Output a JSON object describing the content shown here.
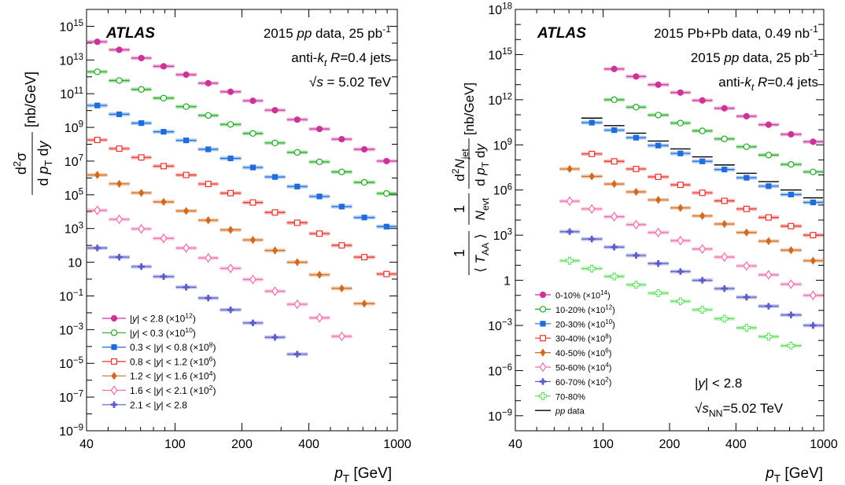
{
  "chart_data": [
    {
      "type": "scatter",
      "panel": "left",
      "xscale": "log",
      "yscale": "log",
      "xlim": [
        40,
        1000
      ],
      "ylim": [
        1e-09,
        1e+16
      ],
      "x_ticks": [
        {
          "v": 40,
          "t": "40"
        },
        {
          "v": 100,
          "t": "100"
        },
        {
          "v": 200,
          "t": "200"
        },
        {
          "v": 400,
          "t": "400"
        },
        {
          "v": 1000,
          "t": "1000"
        }
      ],
      "y_ticks": [
        {
          "v": 1e-09,
          "b": "10",
          "e": "−9"
        },
        {
          "v": 1e-07,
          "b": "10",
          "e": "−7"
        },
        {
          "v": 1e-05,
          "b": "10",
          "e": "−5"
        },
        {
          "v": 0.001,
          "b": "10",
          "e": "−3"
        },
        {
          "v": 0.1,
          "b": "10",
          "e": "−1"
        },
        {
          "v": 10,
          "b": "10",
          "e": ""
        },
        {
          "v": 1000.0,
          "b": "10",
          "e": "3"
        },
        {
          "v": 100000.0,
          "b": "10",
          "e": "5"
        },
        {
          "v": 10000000.0,
          "b": "10",
          "e": "7"
        },
        {
          "v": 1000000000.0,
          "b": "10",
          "e": "9"
        },
        {
          "v": 100000000000.0,
          "b": "10",
          "e": "11"
        },
        {
          "v": 10000000000000.0,
          "b": "10",
          "e": "13"
        },
        {
          "v": 1000000000000000.0,
          "b": "10",
          "e": "15"
        }
      ],
      "xlabel": "p_T [GeV]",
      "ylabel": "d²σ / d p_T dy [nb/GeV]",
      "annotations": [
        "ATLAS",
        "2015 pp data, 25 pb⁻¹",
        "anti-k_t R=0.4 jets",
        "√s = 5.02 TeV"
      ],
      "legend_position": "bottom-left",
      "bin_edges": [
        40,
        50,
        63,
        79,
        100,
        126,
        158,
        200,
        251,
        316,
        398,
        501,
        631,
        800,
        1000
      ],
      "series": [
        {
          "name": "|y| < 2.8 (×10¹²)",
          "color": "#cc3399",
          "marker": "circle-filled",
          "values": [
            120000000000000.0,
            40000000000000.0,
            13000000000000.0,
            4200000000000.0,
            1350000000000.0,
            420000000000.0,
            130000000000.0,
            38000000000.0,
            10500000000.0,
            2900000000.0,
            800000000.0,
            200000000.0,
            50000000.0,
            10000000.0
          ]
        },
        {
          "name": "|y| < 0.3 (×10¹⁰)",
          "color": "#22aa22",
          "marker": "circle-open",
          "values": [
            2000000000000.0,
            600000000000.0,
            180000000000.0,
            55000000000.0,
            17000000000.0,
            5100000000.0,
            1500000000.0,
            440000000.0,
            120000000.0,
            33000000.0,
            9000000.0,
            2300000.0,
            550000.0,
            120000.0
          ]
        },
        {
          "name": "0.3 < |y| < 0.8 (×10⁸)",
          "color": "#1f6ddb",
          "marker": "square-filled",
          "values": [
            20000000000.0,
            6000000000.0,
            1800000000.0,
            550000000.0,
            170000000.0,
            50000000.0,
            14500000.0,
            4200000.0,
            1150000.0,
            310000.0,
            80000.0,
            20000.0,
            4500.0,
            1300.0
          ]
        },
        {
          "name": "0.8 < |y| < 1.2 (×10⁶)",
          "color": "#e8322c",
          "marker": "square-open",
          "values": [
            180000000.0,
            55000000.0,
            16500000.0,
            5000000.0,
            1500000.0,
            440000.0,
            125000.0,
            35000.0,
            9000.0,
            2200.0,
            500.0,
            100.0,
            20,
            2.0
          ]
        },
        {
          "name": "1.2 < |y| < 1.6 (×10⁴)",
          "color": "#d2691e",
          "marker": "diamond-filled",
          "values": [
            1500000.0,
            450000.0,
            130000.0,
            38000.0,
            11000.0,
            3100.0,
            830.0,
            210.0,
            50,
            10,
            1.8,
            0.28,
            0.035
          ]
        },
        {
          "name": "1.6 < |y| < 2.1 (×10²)",
          "color": "#f06ca8",
          "marker": "diamond-open",
          "values": [
            12000.0,
            3500.0,
            950.0,
            260.0,
            70,
            18,
            4.3,
            0.95,
            0.19,
            0.032,
            0.005,
            0.0004
          ]
        },
        {
          "name": "2.1 < |y| < 2.8",
          "color": "#5c5cc8",
          "marker": "cross",
          "values": [
            70,
            20,
            5.5,
            1.4,
            0.33,
            0.075,
            0.015,
            0.0025,
            0.00035,
            3.5e-05
          ]
        }
      ]
    },
    {
      "type": "scatter",
      "panel": "right",
      "xscale": "log",
      "yscale": "log",
      "xlim": [
        40,
        1000
      ],
      "ylim": [
        1e-10,
        1e+18
      ],
      "x_ticks": [
        {
          "v": 40,
          "t": "40"
        },
        {
          "v": 100,
          "t": "100"
        },
        {
          "v": 200,
          "t": "200"
        },
        {
          "v": 400,
          "t": "400"
        },
        {
          "v": 1000,
          "t": "1000"
        }
      ],
      "y_ticks": [
        {
          "v": 1e-09,
          "b": "10",
          "e": "−9"
        },
        {
          "v": 1e-06,
          "b": "10",
          "e": "−6"
        },
        {
          "v": 0.001,
          "b": "10",
          "e": "−3"
        },
        {
          "v": 1,
          "b": "1",
          "e": ""
        },
        {
          "v": 1000.0,
          "b": "10",
          "e": "3"
        },
        {
          "v": 1000000.0,
          "b": "10",
          "e": "6"
        },
        {
          "v": 1000000000.0,
          "b": "10",
          "e": "9"
        },
        {
          "v": 1000000000000.0,
          "b": "10",
          "e": "12"
        },
        {
          "v": 1000000000000000.0,
          "b": "10",
          "e": "15"
        },
        {
          "v": 1e+18,
          "b": "10",
          "e": "18"
        }
      ],
      "xlabel": "p_T [GeV]",
      "ylabel": "1/⟨T_AA⟩ · 1/N_evt · d²N_jet / d p_T dy [nb/GeV]",
      "annotations": [
        "ATLAS",
        "2015 Pb+Pb data, 0.49 nb⁻¹",
        "2015 pp data, 25 pb⁻¹",
        "anti-k_t R=0.4 jets",
        "|y| < 2.8",
        "√s_NN=5.02 TeV"
      ],
      "legend_position": "bottom-left",
      "bin_edges": [
        40,
        50,
        63,
        79,
        100,
        126,
        158,
        200,
        251,
        316,
        398,
        501,
        631,
        800,
        1000
      ],
      "series": [
        {
          "name": "0-10% (×10¹⁴)",
          "color": "#cc3399",
          "marker": "circle-filled",
          "start_bin": 4,
          "values": [
            110000000000000.0,
            35000000000000.0,
            10000000000000.0,
            3000000000000.0,
            900000000000.0,
            270000000000.0,
            80000000000.0,
            22000000000.0,
            5000000000.0,
            1600000000.0
          ]
        },
        {
          "name": "10-20% (×10¹²)",
          "color": "#22aa22",
          "marker": "circle-open",
          "start_bin": 4,
          "values": [
            1000000000000.0,
            320000000000.0,
            95000000000.0,
            28000000000.0,
            8500000000.0,
            2500000000.0,
            750000000.0,
            210000000.0,
            50000000.0,
            16000000.0
          ]
        },
        {
          "name": "20-30% (×10¹⁰)",
          "color": "#1f6ddb",
          "marker": "square-filled",
          "start_bin": 3,
          "values": [
            30000000000.0,
            9500000000.0,
            3000000000.0,
            900000000.0,
            270000000.0,
            80000000.0,
            23000000.0,
            6500000.0,
            1800000.0,
            500000.0,
            150000.0
          ]
        },
        {
          "name": "30-40% (×10⁸)",
          "color": "#e8322c",
          "marker": "square-open",
          "start_bin": 3,
          "values": [
            250000000.0,
            80000000.0,
            25000000.0,
            7500000.0,
            2200000.0,
            650000.0,
            190000.0,
            55000.0,
            15000.0,
            4000.0,
            1000.0
          ]
        },
        {
          "name": "40-50% (×10⁶)",
          "color": "#d2691e",
          "marker": "diamond-filled",
          "start_bin": 2,
          "values": [
            25000000.0,
            8000000.0,
            2500000.0,
            750000.0,
            220000.0,
            65000.0,
            19000.0,
            5500.0,
            1500.0,
            400.0,
            100.0,
            20,
            3.0
          ]
        },
        {
          "name": "50-60% (×10⁴)",
          "color": "#f06ca8",
          "marker": "diamond-open",
          "start_bin": 2,
          "values": [
            180000.0,
            55000.0,
            17000.0,
            5000.0,
            1500.0,
            430.0,
            120.0,
            35,
            9.0,
            2.3,
            0.55,
            0.1,
            0.06
          ]
        },
        {
          "name": "60-70% (×10²)",
          "color": "#5c5cc8",
          "marker": "cross",
          "start_bin": 2,
          "values": [
            1700.0,
            550.0,
            160.0,
            45,
            13,
            3.8,
            1.0,
            0.28,
            0.075,
            0.019,
            0.005,
            0.001
          ]
        },
        {
          "name": "70-80%",
          "color": "#55dd55",
          "marker": "cross-open",
          "start_bin": 2,
          "values": [
            20,
            6.0,
            1.8,
            0.5,
            0.14,
            0.04,
            0.011,
            0.0028,
            0.0007,
            0.00018,
            4.5e-05
          ]
        }
      ],
      "pp_reference": {
        "name": "pp data",
        "color": "#000000",
        "start_bin": 3,
        "values": [
          60000000000.0,
          19000000000.0,
          6000000000.0,
          1800000000.0,
          540000000.0,
          160000000.0,
          46000000.0,
          13000000.0,
          3600000.0,
          1000000.0,
          300000.0
        ]
      }
    }
  ]
}
